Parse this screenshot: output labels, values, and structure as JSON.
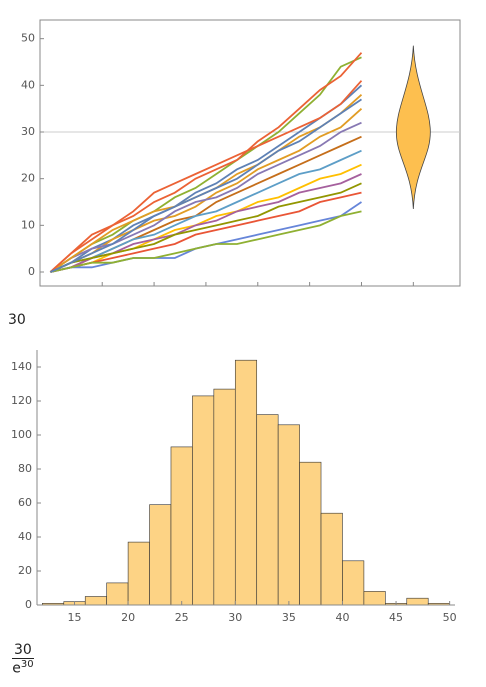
{
  "chart_data": [
    {
      "type": "line",
      "x": [
        0,
        2,
        4,
        6,
        8,
        10,
        12,
        14,
        16,
        18,
        20,
        22,
        24,
        26,
        28,
        30
      ],
      "xlim": [
        -1,
        39.5
      ],
      "xticks": [
        5,
        10,
        15,
        20,
        25,
        30,
        35
      ],
      "ylim": [
        -3,
        54
      ],
      "yticks": [
        0,
        10,
        20,
        30,
        40,
        50
      ],
      "reference_line": 30,
      "violin": {
        "x": 35,
        "min": 13.5,
        "max": 48.5,
        "center": 30,
        "color": "#fdbf4f"
      },
      "series": [
        {
          "color": "#8fb032",
          "values": [
            0,
            3,
            6,
            8,
            11,
            13,
            16,
            18,
            21,
            24,
            27,
            30,
            34,
            38,
            44,
            46
          ]
        },
        {
          "color": "#eb6235",
          "values": [
            0,
            4,
            7,
            10,
            12,
            15,
            17,
            20,
            22,
            24,
            28,
            31,
            35,
            39,
            42,
            47
          ]
        },
        {
          "color": "#5e81b5",
          "values": [
            0,
            2,
            5,
            7,
            10,
            12,
            14,
            17,
            19,
            22,
            24,
            27,
            30,
            33,
            36,
            40
          ]
        },
        {
          "color": "#e19c24",
          "values": [
            0,
            2,
            4,
            7,
            9,
            11,
            12,
            14,
            17,
            19,
            22,
            24,
            26,
            29,
            31,
            35
          ]
        },
        {
          "color": "#8778b3",
          "values": [
            0,
            3,
            5,
            6,
            8,
            10,
            13,
            15,
            16,
            18,
            21,
            23,
            25,
            27,
            30,
            32
          ]
        },
        {
          "color": "#c56e1a",
          "values": [
            0,
            1,
            3,
            5,
            7,
            9,
            11,
            12,
            15,
            17,
            19,
            21,
            23,
            25,
            27,
            29
          ]
        },
        {
          "color": "#5d9ec7",
          "values": [
            0,
            2,
            3,
            5,
            7,
            8,
            10,
            12,
            13,
            15,
            17,
            19,
            21,
            22,
            24,
            26
          ]
        },
        {
          "color": "#ffbf00",
          "values": [
            0,
            1,
            2,
            4,
            5,
            7,
            9,
            10,
            12,
            13,
            15,
            16,
            18,
            20,
            21,
            23
          ]
        },
        {
          "color": "#a5609d",
          "values": [
            0,
            1,
            3,
            4,
            6,
            7,
            8,
            10,
            11,
            13,
            14,
            15,
            17,
            18,
            19,
            21
          ]
        },
        {
          "color": "#929600",
          "values": [
            0,
            2,
            3,
            4,
            5,
            6,
            8,
            9,
            10,
            11,
            12,
            14,
            15,
            16,
            17,
            19
          ]
        },
        {
          "color": "#e95536",
          "values": [
            0,
            1,
            2,
            3,
            4,
            5,
            6,
            8,
            9,
            10,
            11,
            12,
            13,
            15,
            16,
            17
          ]
        },
        {
          "color": "#6685d9",
          "values": [
            0,
            1,
            1,
            2,
            3,
            3,
            3,
            5,
            6,
            7,
            8,
            9,
            10,
            11,
            12,
            15
          ]
        },
        {
          "color": "#8fb032",
          "values": [
            0,
            1,
            2,
            2,
            3,
            3,
            4,
            5,
            6,
            6,
            7,
            8,
            9,
            10,
            12,
            13
          ]
        },
        {
          "color": "#e19c24",
          "values": [
            0,
            3,
            6,
            9,
            11,
            13,
            14,
            16,
            18,
            21,
            23,
            26,
            29,
            31,
            34,
            38
          ]
        },
        {
          "color": "#eb6235",
          "values": [
            0,
            4,
            8,
            10,
            13,
            17,
            19,
            21,
            23,
            25,
            27,
            29,
            31,
            33,
            36,
            41
          ]
        },
        {
          "color": "#5e81b5",
          "values": [
            0,
            2,
            4,
            6,
            9,
            12,
            14,
            16,
            18,
            20,
            23,
            26,
            28,
            31,
            34,
            37
          ]
        }
      ]
    },
    {
      "type": "histogram",
      "bins": [
        12,
        14,
        16,
        18,
        20,
        22,
        24,
        26,
        28,
        30,
        32,
        34,
        36,
        38,
        40,
        42,
        44,
        46,
        48,
        50
      ],
      "values": [
        1,
        2,
        5,
        13,
        37,
        59,
        93,
        123,
        127,
        144,
        112,
        106,
        84,
        54,
        26,
        8,
        1,
        4,
        1
      ],
      "color": "#fdd385",
      "xlim": [
        11.5,
        50.5
      ],
      "xticks": [
        15,
        20,
        25,
        30,
        35,
        40,
        45,
        50
      ],
      "ylim": [
        0,
        150
      ],
      "yticks": [
        0,
        20,
        40,
        60,
        80,
        100,
        120,
        140
      ]
    }
  ],
  "output_1": "30",
  "output_2": {
    "numerator": "30",
    "base": "e",
    "exponent": "30"
  }
}
